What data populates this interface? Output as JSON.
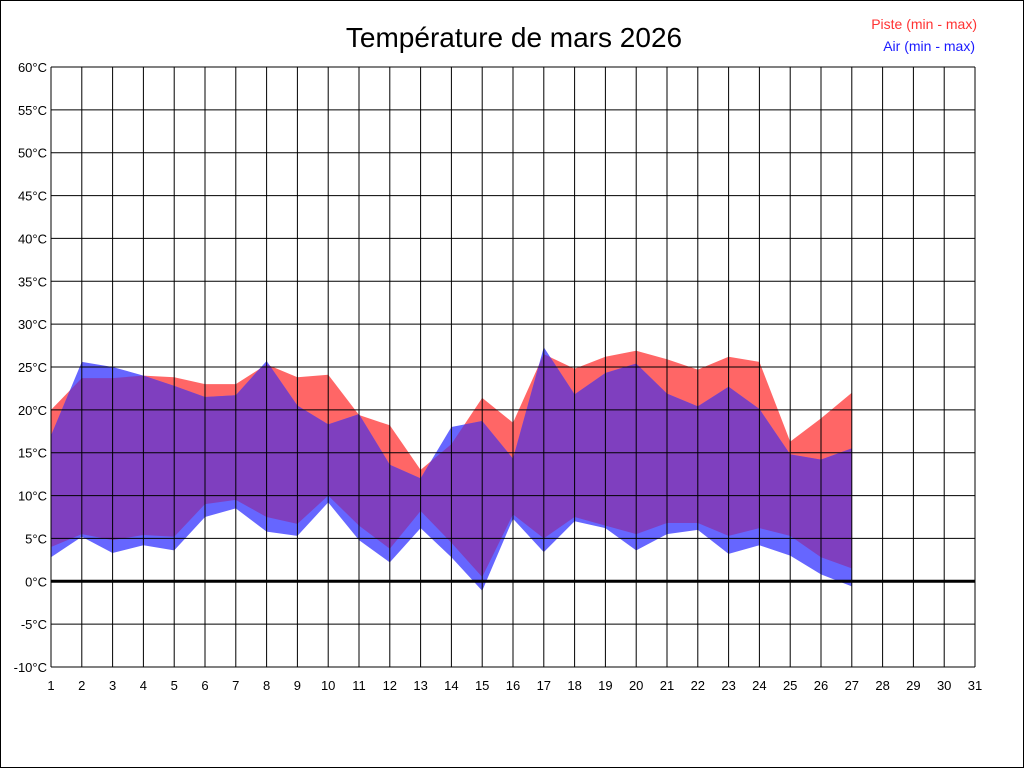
{
  "chart_data": {
    "type": "area",
    "title": "Température de mars 2026",
    "x_ticks": [
      "1",
      "2",
      "3",
      "4",
      "5",
      "6",
      "7",
      "8",
      "9",
      "10",
      "11",
      "12",
      "13",
      "14",
      "15",
      "16",
      "17",
      "18",
      "19",
      "20",
      "21",
      "22",
      "23",
      "24",
      "25",
      "26",
      "27",
      "28",
      "29",
      "30",
      "31"
    ],
    "y_ticks": [
      "60°C",
      "55°C",
      "50°C",
      "45°C",
      "40°C",
      "35°C",
      "30°C",
      "25°C",
      "20°C",
      "15°C",
      "10°C",
      "5°C",
      "0°C",
      "-5°C",
      "-10°C"
    ],
    "xlim": [
      1,
      31
    ],
    "ylim": [
      -10,
      60
    ],
    "grid": true,
    "legend_position": "top-right",
    "x": [
      1,
      2,
      3,
      4,
      5,
      6,
      7,
      8,
      9,
      10,
      11,
      12,
      13,
      14,
      15,
      16,
      17,
      18,
      19,
      20,
      21,
      22,
      23,
      24,
      25,
      26,
      27
    ],
    "series": [
      {
        "name": "Piste (min - max)",
        "color": "#ff6666",
        "min": [
          4.0,
          5.5,
          4.8,
          5.4,
          5.2,
          9.0,
          9.5,
          7.5,
          6.7,
          10.0,
          6.5,
          3.8,
          8.2,
          4.5,
          0.5,
          7.8,
          5.0,
          7.5,
          6.5,
          5.5,
          6.8,
          6.8,
          5.3,
          6.2,
          5.3,
          2.8,
          1.5
        ],
        "max": [
          20.0,
          23.7,
          23.7,
          24.0,
          23.8,
          23.0,
          23.0,
          25.3,
          23.8,
          24.1,
          19.4,
          18.2,
          13.0,
          16.0,
          21.4,
          18.5,
          26.5,
          24.8,
          26.2,
          26.9,
          25.9,
          24.7,
          26.2,
          25.6,
          16.3,
          19.0,
          22.0
        ]
      },
      {
        "name": "Air (min - max)",
        "color": "#6666ff",
        "min": [
          2.8,
          5.2,
          3.3,
          4.2,
          3.6,
          7.5,
          8.5,
          5.8,
          5.3,
          9.2,
          4.8,
          2.2,
          6.2,
          2.8,
          -1.1,
          7.3,
          3.4,
          7.0,
          6.2,
          3.6,
          5.5,
          6.0,
          3.2,
          4.2,
          3.0,
          0.8,
          -0.6
        ],
        "max": [
          17.0,
          25.6,
          25.0,
          24.0,
          22.8,
          21.5,
          21.7,
          25.7,
          20.5,
          18.3,
          19.5,
          13.6,
          12.0,
          18.0,
          18.7,
          14.3,
          27.3,
          21.8,
          24.3,
          25.4,
          21.9,
          20.4,
          22.7,
          20.1,
          14.8,
          14.2,
          15.5
        ]
      }
    ],
    "overlap_color": "#7f3fbf"
  }
}
